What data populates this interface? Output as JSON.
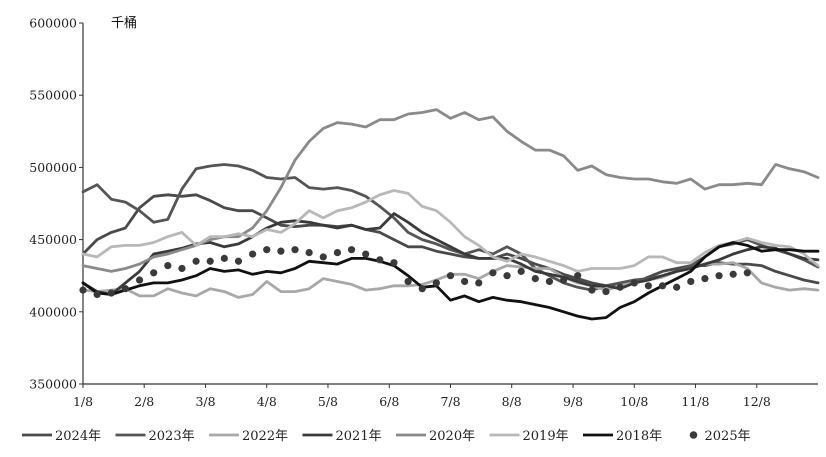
{
  "chart_data": {
    "type": "line",
    "title": "",
    "ylabel": "千桶",
    "xlabel": "",
    "ylim": [
      350000,
      600000
    ],
    "yticks": [
      "600000",
      "550000",
      "500000",
      "450000",
      "400000",
      "350000"
    ],
    "xticks": [
      "1/8",
      "2/8",
      "3/8",
      "4/8",
      "5/8",
      "6/8",
      "7/8",
      "8/8",
      "9/8",
      "10/8",
      "11/8",
      "12/8"
    ],
    "x_week_range": [
      1,
      53
    ],
    "grid": false,
    "legend_position": "bottom",
    "series": [
      {
        "name": "2024年",
        "color": "#4a4a4a",
        "style": "line",
        "values": [
          440000,
          450000,
          455000,
          458000,
          472000,
          480000,
          481000,
          480000,
          481000,
          477000,
          472000,
          470000,
          470000,
          465000,
          460000,
          459000,
          460000,
          460000,
          459000,
          460000,
          457000,
          455000,
          450000,
          445000,
          445000,
          442000,
          440000,
          438000,
          437000,
          437000,
          440000,
          437000,
          433000,
          430000,
          426000,
          423000,
          420000,
          418000,
          417000,
          420000,
          424000,
          428000,
          430000,
          432000,
          432000,
          434000,
          433000,
          433000,
          432000,
          428000,
          425000,
          422000,
          420000
        ]
      },
      {
        "name": "2023年",
        "color": "#555555",
        "style": "line",
        "values": [
          483000,
          488000,
          478000,
          476000,
          470000,
          462000,
          464000,
          485000,
          499000,
          501000,
          502000,
          501000,
          498000,
          493000,
          492000,
          493000,
          486000,
          485000,
          486000,
          484000,
          480000,
          473000,
          465000,
          455000,
          450000,
          447000,
          443000,
          440000,
          443000,
          440000,
          445000,
          440000,
          430000,
          425000,
          420000,
          417000,
          415000,
          418000,
          420000,
          422000,
          423000,
          425000,
          428000,
          432000,
          438000,
          445000,
          447000,
          450000,
          446000,
          443000,
          440000,
          436000,
          431000
        ]
      },
      {
        "name": "2022年",
        "color": "#a8a8a8",
        "style": "line",
        "values": [
          415000,
          414000,
          415000,
          416000,
          411000,
          411000,
          416000,
          413000,
          411000,
          416000,
          414000,
          410000,
          412000,
          421000,
          414000,
          414000,
          416000,
          423000,
          421000,
          419000,
          415000,
          416000,
          418000,
          418000,
          419000,
          422000,
          426000,
          426000,
          423000,
          428000,
          432000,
          431000,
          430000,
          430000,
          424000,
          420000,
          418000,
          415000,
          418000,
          420000,
          422000,
          424000,
          428000,
          430000,
          433000,
          433000,
          434000,
          430000,
          420000,
          417000,
          415000,
          416000,
          415000
        ]
      },
      {
        "name": "2021年",
        "color": "#3a3a3a",
        "style": "line",
        "values": [
          420000,
          414000,
          412000,
          420000,
          428000,
          440000,
          442000,
          444000,
          447000,
          448000,
          445000,
          447000,
          452000,
          458000,
          462000,
          463000,
          462000,
          460000,
          458000,
          460000,
          457000,
          458000,
          468000,
          462000,
          455000,
          450000,
          445000,
          440000,
          437000,
          437000,
          437000,
          433000,
          428000,
          426000,
          424000,
          421000,
          418000,
          418000,
          416000,
          420000,
          422000,
          425000,
          428000,
          430000,
          433000,
          436000,
          440000,
          443000,
          445000,
          444000,
          440000,
          437000,
          436000
        ]
      },
      {
        "name": "2020年",
        "color": "#8a8a8a",
        "style": "line",
        "values": [
          432000,
          430000,
          428000,
          430000,
          433000,
          438000,
          440000,
          443000,
          446000,
          450000,
          452000,
          452000,
          458000,
          470000,
          486000,
          505000,
          518000,
          527000,
          531000,
          530000,
          528000,
          533000,
          533000,
          537000,
          538000,
          540000,
          534000,
          538000,
          533000,
          535000,
          525000,
          518000,
          512000,
          512000,
          508000,
          498000,
          501000,
          495000,
          493000,
          492000,
          492000,
          490000,
          489000,
          492000,
          485000,
          488000,
          488000,
          489000,
          488000,
          502000,
          499000,
          497000,
          493000
        ]
      },
      {
        "name": "2019年",
        "color": "#b8b8b8",
        "style": "line",
        "values": [
          440000,
          438000,
          445000,
          446000,
          446000,
          448000,
          452000,
          455000,
          446000,
          452000,
          452000,
          454000,
          452000,
          457000,
          455000,
          461000,
          470000,
          465000,
          470000,
          472000,
          476000,
          481000,
          484000,
          482000,
          473000,
          470000,
          462000,
          452000,
          446000,
          438000,
          435000,
          440000,
          438000,
          435000,
          432000,
          428000,
          430000,
          430000,
          430000,
          432000,
          438000,
          438000,
          434000,
          434000,
          441000,
          446000,
          448000,
          451000,
          448000,
          446000,
          445000,
          440000,
          432000
        ]
      },
      {
        "name": "2018年",
        "color": "#111111",
        "style": "line",
        "values": [
          420000,
          413000,
          412000,
          415000,
          418000,
          420000,
          420000,
          422000,
          425000,
          430000,
          428000,
          429000,
          426000,
          428000,
          427000,
          430000,
          435000,
          434000,
          433000,
          437000,
          437000,
          435000,
          432000,
          425000,
          417000,
          418000,
          408000,
          411000,
          407000,
          410000,
          408000,
          407000,
          405000,
          403000,
          400000,
          397000,
          395000,
          396000,
          403000,
          407000,
          413000,
          418000,
          423000,
          428000,
          438000,
          445000,
          448000,
          446000,
          442000,
          443000,
          443000,
          442000,
          442000
        ]
      },
      {
        "name": "2025年",
        "color": "#3a3a3a",
        "style": "dots",
        "values": [
          415000,
          412000,
          413000,
          416000,
          422000,
          427000,
          432000,
          430000,
          435000,
          435000,
          437000,
          435000,
          440000,
          443000,
          442000,
          443000,
          441000,
          438000,
          441000,
          443000,
          440000,
          436000,
          434000,
          421000,
          416000,
          420000,
          425000,
          421000,
          420000,
          427000,
          425000,
          428000,
          423000,
          421000,
          422000,
          425000,
          415000,
          414000,
          417000,
          420000,
          418000,
          418000,
          417000,
          421000,
          423000,
          425000,
          426000,
          427000,
          null,
          null,
          null,
          null,
          null
        ]
      }
    ]
  }
}
